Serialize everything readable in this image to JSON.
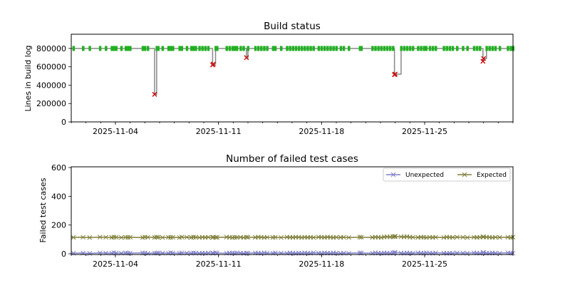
{
  "chart_data": [
    {
      "type": "line",
      "title": "Build status",
      "xlabel": "",
      "ylabel": "Lines in build log",
      "x_start_date": "2025-11-01",
      "xlim_days": [
        0,
        30
      ],
      "ylim": [
        0,
        955000
      ],
      "xticks": [
        {
          "day": 3,
          "label": "2025-11-04"
        },
        {
          "day": 10,
          "label": "2025-11-11"
        },
        {
          "day": 17,
          "label": "2025-11-18"
        },
        {
          "day": 24,
          "label": "2025-11-25"
        }
      ],
      "yticks": [
        {
          "value": 0,
          "label": "0"
        },
        {
          "value": 200000,
          "label": "200000"
        },
        {
          "value": 400000,
          "label": "400000"
        },
        {
          "value": 600000,
          "label": "600000"
        },
        {
          "value": 800000,
          "label": "800000"
        }
      ],
      "colors": {
        "line": "#888888",
        "success": "#22b022",
        "failure": "#cc1111"
      },
      "days": [
        0.15,
        0.8,
        1.25,
        1.95,
        2.35,
        2.75,
        2.9,
        3.05,
        3.4,
        3.7,
        3.85,
        4.0,
        4.85,
        5.0,
        5.2,
        5.66,
        5.8,
        5.9,
        6.2,
        6.6,
        6.75,
        6.9,
        7.35,
        7.5,
        7.85,
        8.15,
        8.3,
        8.45,
        8.7,
        8.9,
        9.1,
        9.3,
        9.6,
        9.65,
        9.8,
        9.9,
        10.55,
        10.75,
        10.95,
        11.1,
        11.25,
        11.5,
        11.7,
        11.9,
        12.0,
        12.5,
        12.7,
        12.9,
        13.1,
        13.3,
        13.7,
        13.85,
        14.25,
        14.65,
        14.85,
        15.05,
        15.25,
        15.45,
        15.65,
        15.85,
        16.05,
        16.25,
        16.45,
        16.8,
        17.0,
        17.2,
        17.4,
        17.6,
        17.8,
        18.0,
        18.3,
        18.5,
        18.85,
        19.6,
        19.7,
        20.45,
        20.65,
        20.85,
        21.05,
        21.25,
        21.45,
        21.65,
        21.85,
        21.95,
        22.0,
        22.4,
        22.6,
        22.8,
        23.0,
        23.2,
        23.55,
        23.75,
        23.95,
        24.1,
        24.35,
        24.55,
        24.75,
        25.3,
        25.5,
        25.7,
        25.9,
        26.2,
        26.6,
        26.9,
        27.35,
        27.55,
        27.75,
        27.96,
        28.0,
        28.2,
        28.4,
        28.6,
        28.8,
        29.1,
        29.65,
        29.85,
        30.0
      ],
      "success_lines": 800000,
      "failed_builds": [
        {
          "index": 15,
          "lines": 300000
        },
        {
          "index": 32,
          "lines": 620000
        },
        {
          "index": 33,
          "lines": 630000
        },
        {
          "index": 43,
          "lines": 700000
        },
        {
          "index": 83,
          "lines": 515000
        },
        {
          "index": 84,
          "lines": 520000
        },
        {
          "index": 107,
          "lines": 660000
        },
        {
          "index": 108,
          "lines": 690000
        }
      ]
    },
    {
      "type": "line",
      "title": "Number of failed test cases",
      "xlabel": "",
      "ylabel": "Failed test cases",
      "xlim_days": [
        0,
        30
      ],
      "ylim": [
        -5,
        605
      ],
      "xticks": [
        {
          "day": 3,
          "label": "2025-11-04"
        },
        {
          "day": 10,
          "label": "2025-11-11"
        },
        {
          "day": 17,
          "label": "2025-11-18"
        },
        {
          "day": 24,
          "label": "2025-11-25"
        }
      ],
      "yticks": [
        {
          "value": 0,
          "label": "0"
        },
        {
          "value": 200,
          "label": "200"
        },
        {
          "value": 400,
          "label": "400"
        },
        {
          "value": 600,
          "label": "600"
        }
      ],
      "legend_position": "top-right",
      "series": [
        {
          "name": "Unexpected",
          "color": "#8080c8",
          "values": [
            4,
            5,
            3,
            6,
            5,
            4,
            7,
            5,
            4,
            6,
            5,
            4,
            6,
            5,
            3,
            5,
            4,
            6,
            5,
            4,
            7,
            5,
            4,
            6,
            5,
            4,
            6,
            5,
            3,
            5,
            4,
            6,
            5,
            4,
            7,
            5,
            4,
            6,
            5,
            4,
            6,
            5,
            3,
            5,
            4,
            6,
            5,
            4,
            7,
            5,
            4,
            6,
            5,
            4,
            6,
            5,
            3,
            5,
            4,
            6,
            5,
            4,
            7,
            5,
            4,
            6,
            5,
            4,
            6,
            5,
            3,
            5,
            4,
            6,
            5,
            4,
            7,
            5,
            4,
            6,
            5,
            4,
            6,
            8,
            9,
            5,
            4,
            6,
            5,
            4,
            7,
            5,
            4,
            6,
            5,
            4,
            6,
            5,
            3,
            5,
            4,
            6,
            5,
            4,
            7,
            5,
            4,
            8,
            9,
            5,
            4,
            6,
            5,
            4,
            7,
            5,
            4
          ]
        },
        {
          "name": "Expected",
          "color": "#7f7f3a",
          "values": [
            114,
            115,
            113,
            116,
            115,
            114,
            116,
            115,
            113,
            115,
            114,
            115,
            113,
            116,
            115,
            114,
            116,
            115,
            113,
            115,
            114,
            115,
            113,
            116,
            115,
            114,
            116,
            115,
            113,
            115,
            114,
            115,
            113,
            116,
            115,
            114,
            116,
            115,
            113,
            115,
            114,
            115,
            113,
            116,
            115,
            114,
            116,
            115,
            113,
            115,
            114,
            115,
            113,
            116,
            115,
            114,
            116,
            115,
            113,
            115,
            114,
            115,
            113,
            116,
            115,
            114,
            116,
            115,
            113,
            115,
            114,
            115,
            113,
            116,
            115,
            114,
            116,
            115,
            113,
            117,
            118,
            117,
            119,
            120,
            121,
            118,
            117,
            119,
            116,
            115,
            114,
            116,
            115,
            113,
            115,
            114,
            115,
            113,
            116,
            115,
            114,
            116,
            115,
            113,
            115,
            114,
            115,
            117,
            118,
            116,
            115,
            113,
            115,
            114,
            115,
            113,
            116
          ]
        }
      ]
    }
  ]
}
